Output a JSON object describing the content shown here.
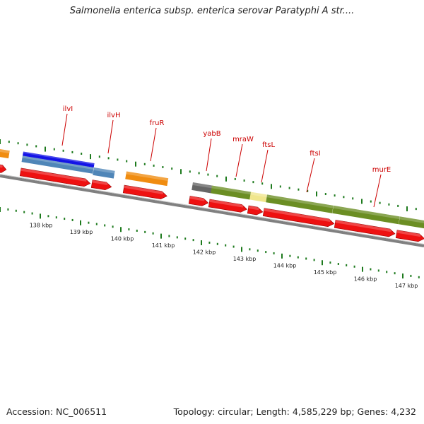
{
  "title": "Salmonella enterica subsp. enterica serovar Paratyphi A str....",
  "accession": "Accession: NC_006511",
  "topology": "Topology: circular; Length: 4,585,229 bp; Genes: 4,232",
  "colors": {
    "backbone": "#808080",
    "tick": "#1d7a1d",
    "cds": "#ee1111",
    "orange_feature": "#f08c10",
    "blue_feature": "#1414e6",
    "steelblue_feature": "#4f86b8",
    "olive_feature": "#6b8e23",
    "khaki_feature": "#f0e68c",
    "gray_feature": "#666666",
    "label": "#cc0000"
  },
  "gene_labels": [
    "ilvI",
    "ilvH",
    "fruR",
    "yabB",
    "mraW",
    "ftsL",
    "ftsI",
    "murE"
  ],
  "kbp_labels": [
    "138 kbp",
    "139 kbp",
    "140 kbp",
    "141 kbp",
    "142 kbp",
    "143 kbp",
    "144 kbp",
    "145 kbp",
    "146 kbp",
    "147 kbp"
  ]
}
